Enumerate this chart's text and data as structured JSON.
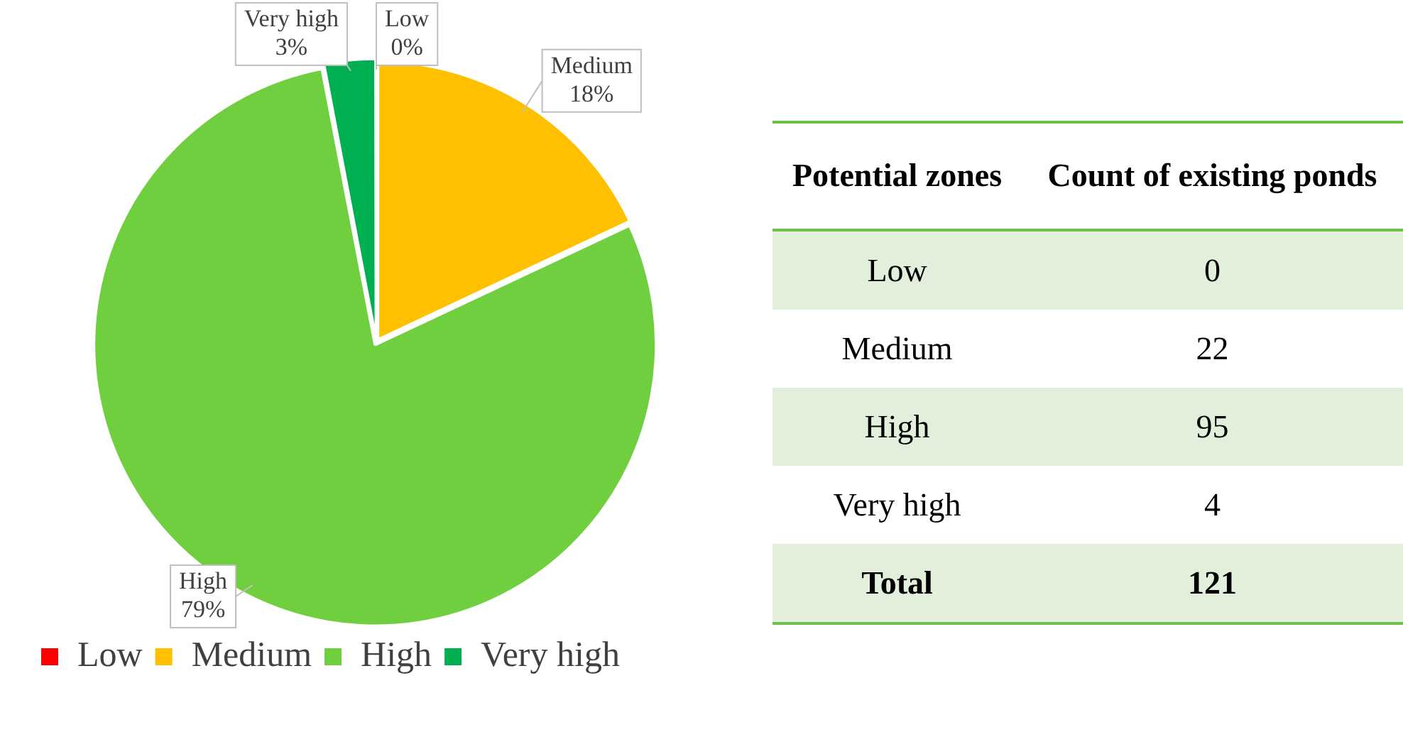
{
  "chart_data": [
    {
      "type": "pie",
      "categories": [
        "Low",
        "Medium",
        "High",
        "Very high"
      ],
      "values": [
        0,
        18,
        79,
        3
      ],
      "colors": [
        "#ff0000",
        "#ffc000",
        "#6fcf3f",
        "#00b050"
      ],
      "value_labels": [
        "0%",
        "18%",
        "79%",
        "3%"
      ],
      "legend": "bottom left"
    },
    {
      "type": "other",
      "categories": [
        "Low",
        "Medium",
        "High",
        "Very high"
      ],
      "values": [
        0,
        22,
        95,
        4
      ],
      "data_labels": true,
      "totals": [
        "121"
      ],
      "annotations": [
        "Potential zones",
        "Count of existing ponds",
        "Total"
      ]
    }
  ]
}
